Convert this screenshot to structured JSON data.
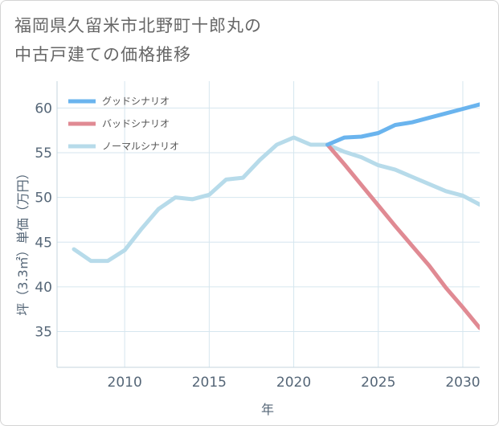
{
  "title_line1": "福岡県久留米市北野町十郎丸の",
  "title_line2": "中古戸建ての価格推移",
  "chart_data": {
    "type": "line",
    "xlabel": "年",
    "ylabel": "坪（3.3㎡）単価（万円）",
    "xlim": [
      2006,
      2031
    ],
    "ylim": [
      31,
      63
    ],
    "xticks": [
      2010,
      2015,
      2020,
      2025,
      2030
    ],
    "yticks": [
      35,
      40,
      45,
      50,
      55,
      60
    ],
    "grid": "horizontal",
    "legend_position": "top-left",
    "series": [
      {
        "name": "グッドシナリオ",
        "color": "#6ab4ee",
        "x": [
          2022,
          2023,
          2024,
          2025,
          2026,
          2027,
          2028,
          2029,
          2030,
          2031
        ],
        "values": [
          55.9,
          56.7,
          56.8,
          57.2,
          58.1,
          58.4,
          58.9,
          59.4,
          59.9,
          60.4
        ]
      },
      {
        "name": "バッドシナリオ",
        "color": "#e08a93",
        "x": [
          2022,
          2023,
          2024,
          2025,
          2026,
          2027,
          2028,
          2029,
          2030,
          2031
        ],
        "values": [
          55.9,
          53.7,
          51.4,
          49.1,
          46.8,
          44.6,
          42.4,
          39.9,
          37.7,
          35.4
        ]
      },
      {
        "name": "ノーマルシナリオ",
        "color": "#b7dbea",
        "x": [
          2007,
          2008,
          2009,
          2010,
          2011,
          2012,
          2013,
          2014,
          2015,
          2016,
          2017,
          2018,
          2019,
          2020,
          2021,
          2022,
          2023,
          2024,
          2025,
          2026,
          2027,
          2028,
          2029,
          2030,
          2031
        ],
        "values": [
          44.2,
          42.9,
          42.9,
          44.1,
          46.5,
          48.7,
          50.0,
          49.8,
          50.3,
          52.0,
          52.2,
          54.2,
          55.9,
          56.7,
          55.9,
          55.9,
          55.1,
          54.5,
          53.6,
          53.1,
          52.3,
          51.5,
          50.7,
          50.2,
          49.2
        ]
      }
    ]
  }
}
